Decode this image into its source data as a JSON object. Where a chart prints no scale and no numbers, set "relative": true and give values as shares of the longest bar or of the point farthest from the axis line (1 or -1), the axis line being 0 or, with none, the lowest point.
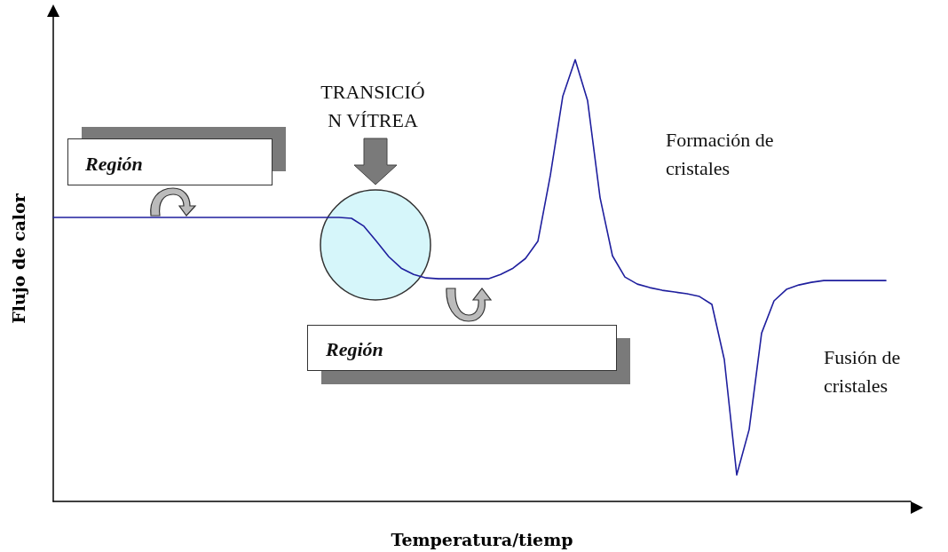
{
  "chart_data": {
    "type": "line",
    "relative": true,
    "xlabel": "Temperatura/tiemp",
    "ylabel": "Flujo de calor",
    "color": "#1f1f9e",
    "marker": "none",
    "grid": false,
    "categories": [
      null,
      null,
      null,
      null,
      null,
      null,
      null,
      null,
      null,
      null,
      null,
      null,
      null,
      null,
      null,
      null,
      null,
      null,
      null,
      null,
      null,
      null,
      null,
      null,
      null,
      null,
      null,
      null,
      null,
      null,
      null,
      null,
      null,
      null,
      null,
      null,
      null,
      null,
      null,
      null,
      null,
      null,
      null,
      null,
      null,
      null,
      null,
      null,
      null,
      null,
      null,
      null,
      null,
      null,
      null,
      null,
      null,
      null,
      null,
      null,
      null,
      null,
      null,
      null,
      null,
      null,
      null,
      null,
      null,
      null
    ],
    "values": [
      0.643,
      0.643,
      0.643,
      0.643,
      0.643,
      0.643,
      0.643,
      0.643,
      0.643,
      0.643,
      0.643,
      0.643,
      0.643,
      0.643,
      0.643,
      0.643,
      0.643,
      0.643,
      0.643,
      0.643,
      0.643,
      0.643,
      0.643,
      0.643,
      0.641,
      0.623,
      0.589,
      0.554,
      0.528,
      0.514,
      0.506,
      0.504,
      0.504,
      0.504,
      0.504,
      0.504,
      0.514,
      0.528,
      0.55,
      0.589,
      0.738,
      0.917,
      1,
      0.907,
      0.688,
      0.556,
      0.508,
      0.492,
      0.484,
      0.478,
      0.474,
      0.47,
      0.464,
      0.446,
      0.321,
      0.06,
      0.163,
      0.381,
      0.454,
      0.48,
      0.49,
      0.496,
      0.5,
      0.5,
      0.5,
      0.5,
      0.5,
      0.5,
      null,
      null
    ],
    "annotations": [
      "Región",
      "Región",
      "TRANSICIÓ\nN VÍTREA",
      "Formación de cristales",
      "Fusión de cristales"
    ]
  }
}
